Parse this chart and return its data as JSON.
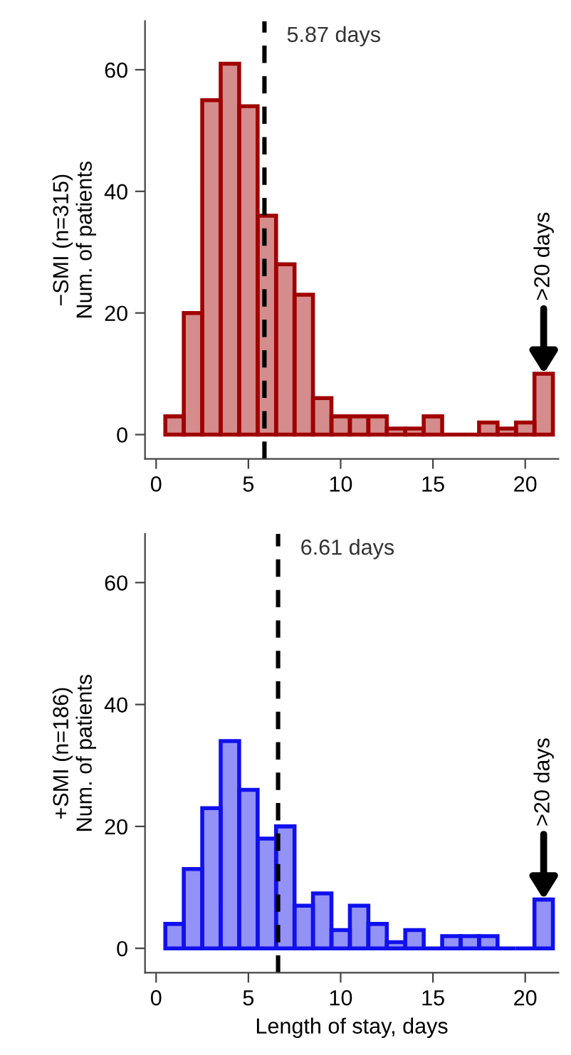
{
  "chart_data": [
    {
      "type": "histogram",
      "ylabel": "−SMI (n=315)\nNum. of patients",
      "bins": [
        0.5,
        1.5,
        2.5,
        3.5,
        4.5,
        5.5,
        6.5,
        7.5,
        8.5,
        9.5,
        10.5,
        11.5,
        12.5,
        13.5,
        14.5,
        15.5,
        16.5,
        17.5,
        18.5,
        19.5,
        20.5,
        21.5
      ],
      "series": [
        {
          "color": "#a00000",
          "values": [
            3,
            20,
            55,
            61,
            54,
            36,
            28,
            23,
            6,
            3,
            3,
            3,
            1,
            1,
            3,
            0,
            0,
            2,
            1,
            2,
            10
          ]
        }
      ],
      "xlim": [
        -0.6,
        21.8
      ],
      "ylim": [
        -4,
        68
      ],
      "xticks": [
        0,
        5,
        10,
        15,
        20
      ],
      "yticks": [
        0,
        20,
        40,
        60
      ],
      "ref_lines": [
        {
          "axis": "x",
          "value": 5.87,
          "label": "5.87 days",
          "line_style": "dashed",
          "color": "#000000"
        }
      ],
      "annotations": [
        {
          "text": ">20 days",
          "x": 21,
          "y": 10
        }
      ],
      "grid": false
    },
    {
      "type": "histogram",
      "ylabel": "+SMI (n=186)\nNum. of patients",
      "xlabel": "Length of stay, days",
      "bins": [
        0.5,
        1.5,
        2.5,
        3.5,
        4.5,
        5.5,
        6.5,
        7.5,
        8.5,
        9.5,
        10.5,
        11.5,
        12.5,
        13.5,
        14.5,
        15.5,
        16.5,
        17.5,
        18.5,
        19.5,
        20.5,
        21.5
      ],
      "series": [
        {
          "color": "#1010ee",
          "values": [
            4,
            13,
            23,
            34,
            26,
            18,
            20,
            7,
            9,
            3,
            7,
            4,
            1,
            3,
            0,
            2,
            2,
            2,
            0,
            0,
            8
          ]
        }
      ],
      "xlim": [
        -0.6,
        21.8
      ],
      "ylim": [
        -4,
        68
      ],
      "xticks": [
        0,
        5,
        10,
        15,
        20
      ],
      "yticks": [
        0,
        20,
        40,
        60
      ],
      "ref_lines": [
        {
          "axis": "x",
          "value": 6.61,
          "label": "6.61 days",
          "line_style": "dashed",
          "color": "#000000"
        }
      ],
      "annotations": [
        {
          "text": ">20 days",
          "x": 21,
          "y": 8
        }
      ],
      "grid": false
    }
  ]
}
